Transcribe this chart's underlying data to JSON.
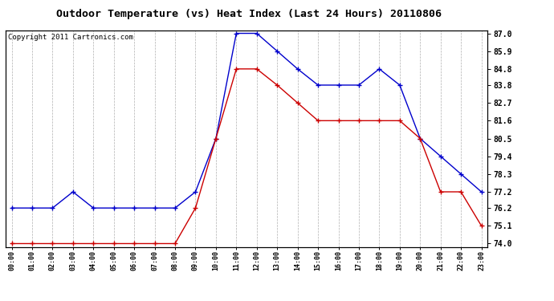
{
  "title": "Outdoor Temperature (vs) Heat Index (Last 24 Hours) 20110806",
  "copyright": "Copyright 2011 Cartronics.com",
  "hours": [
    "00:00",
    "01:00",
    "02:00",
    "03:00",
    "04:00",
    "05:00",
    "06:00",
    "07:00",
    "08:00",
    "09:00",
    "10:00",
    "11:00",
    "12:00",
    "13:00",
    "14:00",
    "15:00",
    "16:00",
    "17:00",
    "18:00",
    "19:00",
    "20:00",
    "21:00",
    "22:00",
    "23:00"
  ],
  "blue_temp": [
    76.2,
    76.2,
    76.2,
    77.2,
    76.2,
    76.2,
    76.2,
    76.2,
    76.2,
    77.2,
    80.5,
    87.0,
    87.0,
    85.9,
    84.8,
    83.8,
    83.8,
    83.8,
    84.8,
    83.8,
    80.5,
    79.4,
    78.3,
    77.2
  ],
  "red_heat": [
    74.0,
    74.0,
    74.0,
    74.0,
    74.0,
    74.0,
    74.0,
    74.0,
    74.0,
    76.2,
    80.5,
    84.8,
    84.8,
    83.8,
    82.7,
    81.6,
    81.6,
    81.6,
    81.6,
    81.6,
    80.5,
    77.2,
    77.2,
    75.1
  ],
  "ylim_min": 74.0,
  "ylim_max": 87.0,
  "yticks": [
    74.0,
    75.1,
    76.2,
    77.2,
    78.3,
    79.4,
    80.5,
    81.6,
    82.7,
    83.8,
    84.8,
    85.9,
    87.0
  ],
  "blue_color": "#0000cc",
  "red_color": "#cc0000",
  "bg_color": "#ffffff",
  "plot_bg": "#ffffff",
  "grid_color": "#b0b0b0",
  "title_fontsize": 9.5,
  "copyright_fontsize": 6.5
}
